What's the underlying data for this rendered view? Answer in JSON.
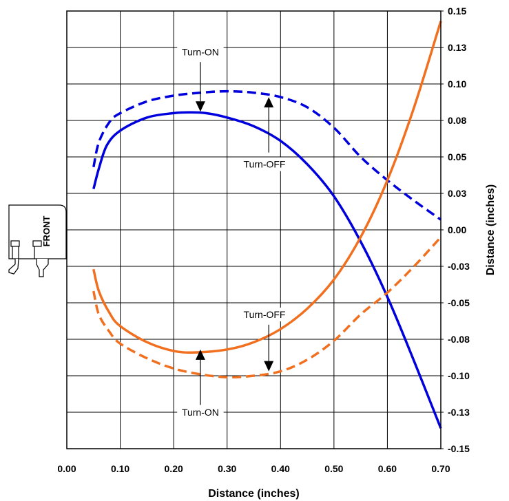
{
  "chart_data": {
    "type": "line",
    "title": "",
    "xlabel": "Distance (inches)",
    "ylabel": "Distance (inches)",
    "xlim": [
      0.0,
      0.7
    ],
    "ylim": [
      -0.15,
      0.15
    ],
    "x_ticks": [
      "0.00",
      "0.10",
      "0.20",
      "0.30",
      "0.40",
      "0.50",
      "0.60",
      "0.70"
    ],
    "y_ticks": [
      "0.15",
      "0.13",
      "0.10",
      "0.08",
      "0.05",
      "0.03",
      "0.00",
      "-0.03",
      "-0.05",
      "-0.08",
      "-0.10",
      "-0.13",
      "-0.15"
    ],
    "y_axis_side": "right",
    "grid": true,
    "colors": {
      "blue": "#0000dd",
      "orange": "#f07020"
    },
    "series": [
      {
        "color": "blue",
        "style": "solid",
        "x": [
          0.05,
          0.06,
          0.075,
          0.1,
          0.15,
          0.2,
          0.23,
          0.26,
          0.3,
          0.35,
          0.4,
          0.45,
          0.5,
          0.55,
          0.6,
          0.65,
          0.7
        ],
        "y": [
          0.028,
          0.042,
          0.058,
          0.068,
          0.077,
          0.08,
          0.0805,
          0.08,
          0.077,
          0.071,
          0.061,
          0.045,
          0.023,
          -0.008,
          -0.046,
          -0.09,
          -0.136
        ]
      },
      {
        "color": "blue",
        "style": "dashed",
        "x": [
          0.05,
          0.06,
          0.08,
          0.1,
          0.15,
          0.2,
          0.25,
          0.3,
          0.35,
          0.4,
          0.45,
          0.5,
          0.55,
          0.6,
          0.65,
          0.7
        ],
        "y": [
          0.043,
          0.06,
          0.074,
          0.08,
          0.088,
          0.092,
          0.094,
          0.095,
          0.094,
          0.091,
          0.084,
          0.07,
          0.05,
          0.034,
          0.02,
          0.007
        ]
      },
      {
        "color": "orange",
        "style": "solid",
        "x": [
          0.05,
          0.06,
          0.08,
          0.1,
          0.15,
          0.2,
          0.24,
          0.3,
          0.35,
          0.4,
          0.45,
          0.5,
          0.55,
          0.6,
          0.65,
          0.7
        ],
        "y": [
          -0.027,
          -0.042,
          -0.057,
          -0.066,
          -0.077,
          -0.083,
          -0.084,
          -0.082,
          -0.077,
          -0.068,
          -0.054,
          -0.034,
          -0.005,
          0.034,
          0.084,
          0.143
        ]
      },
      {
        "color": "orange",
        "style": "dashed",
        "x": [
          0.05,
          0.06,
          0.08,
          0.1,
          0.15,
          0.2,
          0.25,
          0.3,
          0.35,
          0.4,
          0.45,
          0.5,
          0.55,
          0.6,
          0.65,
          0.7
        ],
        "y": [
          -0.042,
          -0.058,
          -0.07,
          -0.078,
          -0.088,
          -0.095,
          -0.099,
          -0.101,
          -0.1,
          -0.097,
          -0.089,
          -0.076,
          -0.058,
          -0.043,
          -0.025,
          -0.005
        ]
      }
    ],
    "annotations": [
      {
        "text": "Turn-ON",
        "x": 0.25,
        "y": 0.122,
        "arrow_from": [
          0.25,
          0.115
        ],
        "arrow_to": [
          0.25,
          0.081
        ]
      },
      {
        "text": "Turn-OFF",
        "x": 0.37,
        "y": 0.045,
        "arrow_from": [
          0.378,
          0.053
        ],
        "arrow_to": [
          0.378,
          0.091
        ]
      },
      {
        "text": "Turn-OFF",
        "x": 0.37,
        "y": -0.058,
        "arrow_from": [
          0.378,
          -0.065
        ],
        "arrow_to": [
          0.378,
          -0.097
        ]
      },
      {
        "text": "Turn-ON",
        "x": 0.25,
        "y": -0.125,
        "arrow_from": [
          0.25,
          -0.12
        ],
        "arrow_to": [
          0.25,
          -0.082
        ]
      }
    ]
  },
  "diagram_label": "FRONT"
}
